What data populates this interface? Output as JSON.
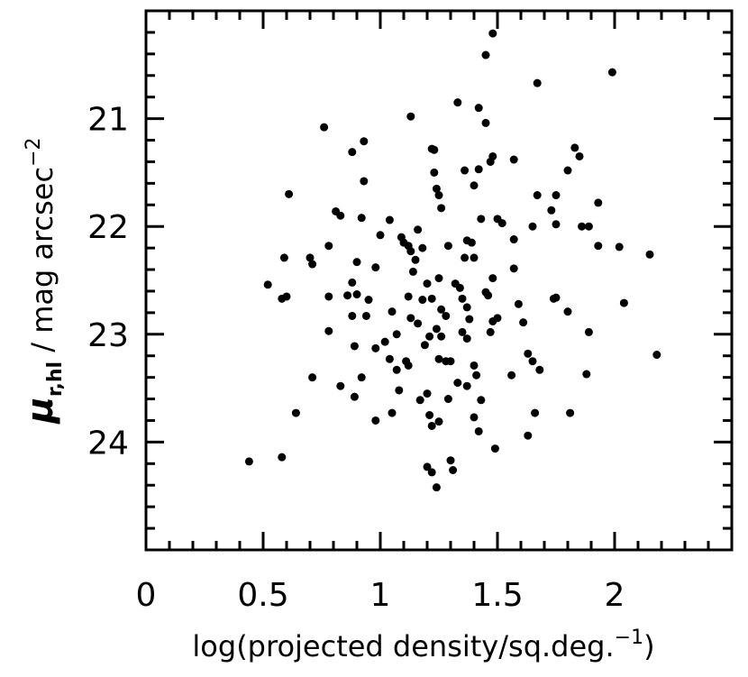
{
  "chart_data": {
    "type": "scatter",
    "xlabel": {
      "text": "log(projected density/sq.deg.",
      "superscript": "−1",
      "close": ")"
    },
    "ylabel": {
      "symbol": "μ",
      "subscript": "r,hl",
      "text": " / mag arcsec",
      "superscript": "−2"
    },
    "xlim": [
      0,
      2.5
    ],
    "ylim": [
      25,
      20
    ],
    "xticks": [
      0,
      0.5,
      1,
      1.5,
      2
    ],
    "yticks": [
      21,
      22,
      23,
      24
    ],
    "xminorticks": [
      0.1,
      0.2,
      0.3,
      0.4,
      0.6,
      0.7,
      0.8,
      0.9,
      1.1,
      1.2,
      1.3,
      1.4,
      1.6,
      1.7,
      1.8,
      1.9,
      2.1,
      2.2,
      2.3,
      2.4
    ],
    "yminorticks": [
      20.2,
      20.4,
      20.6,
      20.8,
      21.2,
      21.4,
      21.6,
      21.8,
      22.2,
      22.4,
      22.6,
      22.8,
      23.2,
      23.4,
      23.6,
      23.8,
      24.2,
      24.4,
      24.6,
      24.8
    ],
    "color": "#000000",
    "x": [
      1.48,
      1.45,
      1.99,
      1.67,
      1.33,
      1.42,
      1.13,
      1.45,
      0.76,
      0.93,
      0.88,
      1.22,
      1.23,
      1.48,
      1.47,
      1.57,
      1.83,
      1.85,
      1.8,
      1.36,
      1.42,
      1.23,
      0.93,
      1.4,
      1.24,
      1.25,
      0.61,
      1.67,
      1.75,
      1.73,
      1.93,
      1.26,
      0.81,
      0.83,
      0.92,
      1.04,
      1.43,
      1.5,
      1.52,
      1.65,
      1.86,
      1.89,
      1.75,
      1.16,
      1.0,
      1.09,
      1.1,
      1.12,
      1.13,
      1.18,
      1.37,
      1.39,
      1.57,
      1.93,
      2.02,
      2.15,
      0.78,
      1.29,
      1.36,
      1.4,
      0.59,
      0.7,
      0.71,
      0.9,
      0.98,
      1.14,
      1.15,
      1.57,
      1.48,
      1.25,
      0.52,
      0.88,
      1.2,
      1.32,
      1.34,
      1.45,
      1.46,
      0.58,
      0.6,
      0.78,
      0.86,
      0.9,
      0.95,
      1.12,
      1.18,
      1.22,
      1.35,
      1.59,
      1.74,
      1.75,
      2.04,
      1.8,
      1.05,
      0.88,
      0.94,
      1.13,
      1.26,
      1.28,
      1.37,
      1.38,
      1.5,
      1.48,
      1.61,
      0.78,
      1.16,
      1.24,
      1.21,
      1.26,
      1.35,
      1.47,
      1.89,
      1.37,
      1.07,
      1.02,
      0.89,
      0.98,
      1.19,
      1.63,
      1.65,
      1.68,
      2.18,
      1.04,
      1.11,
      1.12,
      1.25,
      1.28,
      1.3,
      1.4,
      1.07,
      1.41,
      1.56,
      1.88,
      0.71,
      0.92,
      1.08,
      1.33,
      1.37,
      0.83,
      0.89,
      1.2,
      1.17,
      1.29,
      1.43,
      0.64,
      1.05,
      1.21,
      1.25,
      1.22,
      1.4,
      0.98,
      1.66,
      1.81,
      1.42,
      1.63,
      1.49,
      0.44,
      0.58,
      1.2,
      1.22,
      1.3,
      1.31,
      1.24
    ],
    "y": [
      20.21,
      20.41,
      20.57,
      20.67,
      20.85,
      20.9,
      20.98,
      21.04,
      21.08,
      21.21,
      21.31,
      21.28,
      21.29,
      21.35,
      21.4,
      21.38,
      21.27,
      21.35,
      21.48,
      21.48,
      21.47,
      21.5,
      21.58,
      21.62,
      21.65,
      21.71,
      21.7,
      21.71,
      21.71,
      21.85,
      21.78,
      21.83,
      21.86,
      21.9,
      21.92,
      21.94,
      21.93,
      21.93,
      21.97,
      22.0,
      22.0,
      22.0,
      21.98,
      22.03,
      22.08,
      22.1,
      22.15,
      22.18,
      22.23,
      22.2,
      22.13,
      22.15,
      22.12,
      22.18,
      22.19,
      22.26,
      22.18,
      22.18,
      22.29,
      22.29,
      22.29,
      22.29,
      22.35,
      22.33,
      22.38,
      22.42,
      22.31,
      22.39,
      22.48,
      22.48,
      22.54,
      22.52,
      22.53,
      22.53,
      22.57,
      22.61,
      22.64,
      22.67,
      22.65,
      22.65,
      22.64,
      22.63,
      22.68,
      22.65,
      22.68,
      22.67,
      22.67,
      22.72,
      22.67,
      22.66,
      22.71,
      22.79,
      22.79,
      22.83,
      22.83,
      22.85,
      22.77,
      22.83,
      22.75,
      22.86,
      22.85,
      22.88,
      22.89,
      22.97,
      22.9,
      22.95,
      23.02,
      23.02,
      22.98,
      22.98,
      22.98,
      23.04,
      23.0,
      23.07,
      23.11,
      23.13,
      23.1,
      23.18,
      23.25,
      23.33,
      23.19,
      23.23,
      23.25,
      23.29,
      23.23,
      23.25,
      23.25,
      23.29,
      23.33,
      23.38,
      23.38,
      23.37,
      23.4,
      23.4,
      23.52,
      23.45,
      23.48,
      23.48,
      23.58,
      23.55,
      23.61,
      23.6,
      23.61,
      23.73,
      23.73,
      23.75,
      23.81,
      23.85,
      23.77,
      23.8,
      23.73,
      23.73,
      23.9,
      23.94,
      24.06,
      24.18,
      24.14,
      24.23,
      24.28,
      24.17,
      24.26,
      24.42
    ]
  }
}
